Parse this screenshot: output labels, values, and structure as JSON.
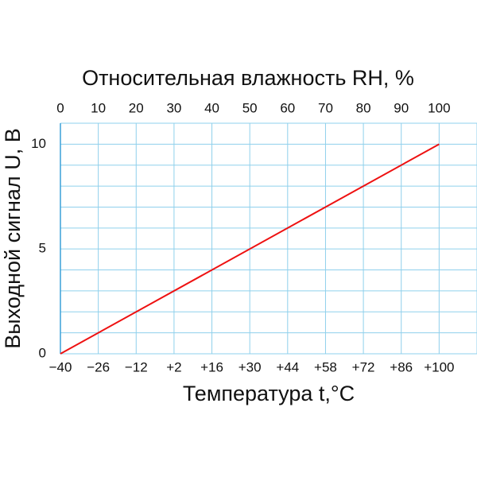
{
  "chart_data": {
    "type": "line",
    "title": "Относительная влажность RH, %",
    "ylabel": "Выходной сигнал U, В",
    "x2label": "Температура t,°С",
    "x": [
      0,
      100
    ],
    "series": [
      {
        "color": "#ee1111",
        "values": [
          0,
          10
        ]
      }
    ],
    "xlim": [
      0,
      110
    ],
    "xticks": [
      0,
      10,
      20,
      30,
      40,
      50,
      60,
      70,
      80,
      90,
      100
    ],
    "x2lim": [
      -40,
      114
    ],
    "x2ticks": [
      {
        "value": -40,
        "label": "−40"
      },
      {
        "value": -26,
        "label": "−26"
      },
      {
        "value": -12,
        "label": "−12"
      },
      {
        "value": 2,
        "label": "+2"
      },
      {
        "value": 16,
        "label": "+16"
      },
      {
        "value": 30,
        "label": "+30"
      },
      {
        "value": 44,
        "label": "+44"
      },
      {
        "value": 58,
        "label": "+58"
      },
      {
        "value": 72,
        "label": "+72"
      },
      {
        "value": 86,
        "label": "+86"
      },
      {
        "value": 100,
        "label": "+100"
      }
    ],
    "ylim": [
      0,
      11
    ],
    "yticks": [
      0,
      5,
      10
    ],
    "grid": true,
    "grid_step_x": 10,
    "grid_step_y": 1,
    "grid_color": "#8fd0ec"
  }
}
